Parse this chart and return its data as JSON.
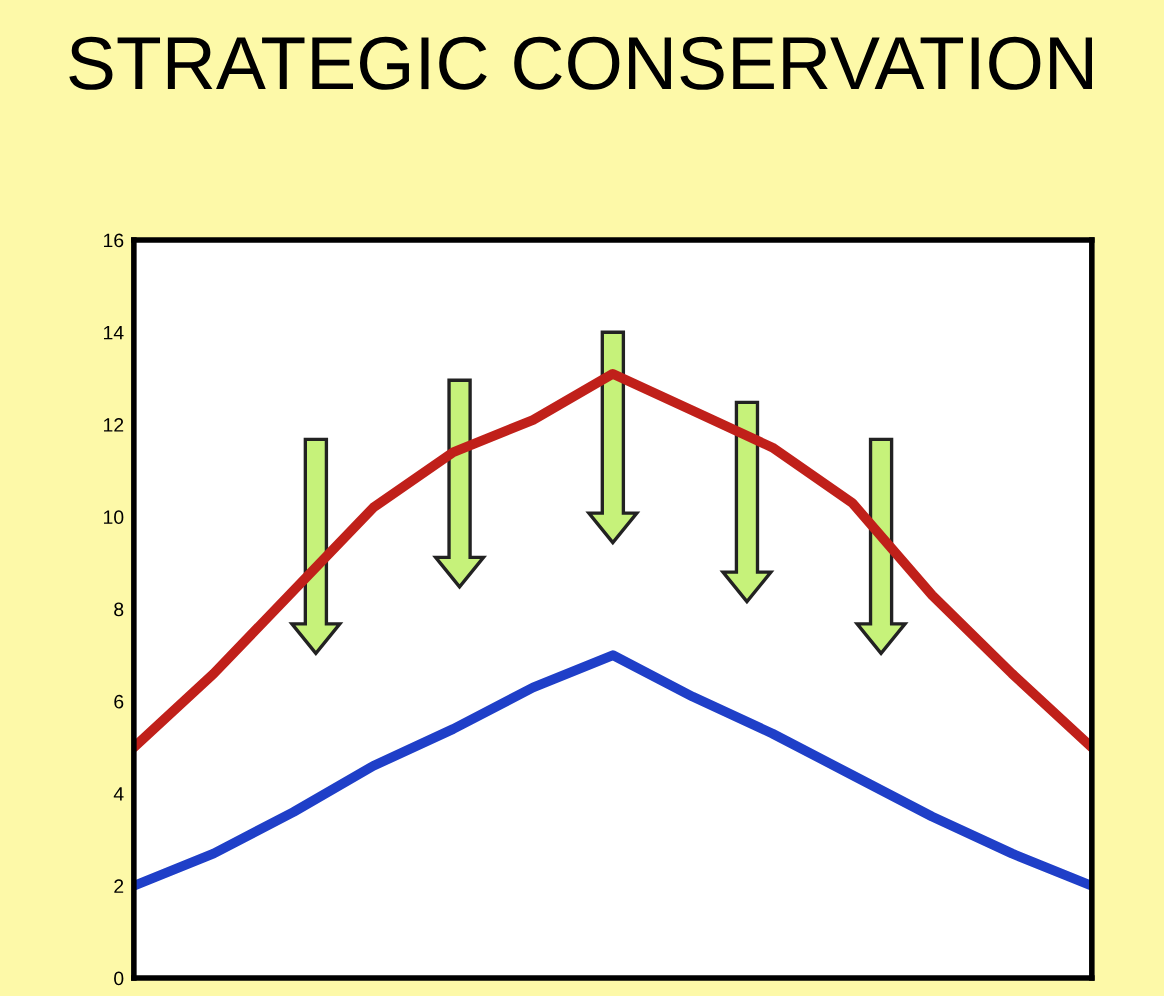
{
  "chart_data": {
    "type": "line",
    "title": "STRATEGIC CONSERVATION",
    "categories": [
      null,
      null,
      null,
      null,
      null,
      null,
      null,
      null,
      null,
      null,
      null,
      null,
      null
    ],
    "series": [
      {
        "color": "#c0201a",
        "values": [
          5,
          6.6,
          8.4,
          10.2,
          11.4,
          12.1,
          13.1,
          12.3,
          11.5,
          10.3,
          8.3,
          6.6,
          5
        ]
      },
      {
        "color": "#1f3fc8",
        "values": [
          2,
          2.7,
          3.6,
          4.6,
          5.4,
          6.3,
          7.0,
          6.1,
          5.3,
          4.4,
          3.5,
          2.7,
          2
        ]
      }
    ],
    "ylim": [
      0,
      16
    ],
    "yticks": [
      0,
      2,
      4,
      6,
      8,
      10,
      12,
      14,
      16
    ],
    "grid": false,
    "legend": false,
    "marker": "none",
    "line_style": "solid"
  }
}
